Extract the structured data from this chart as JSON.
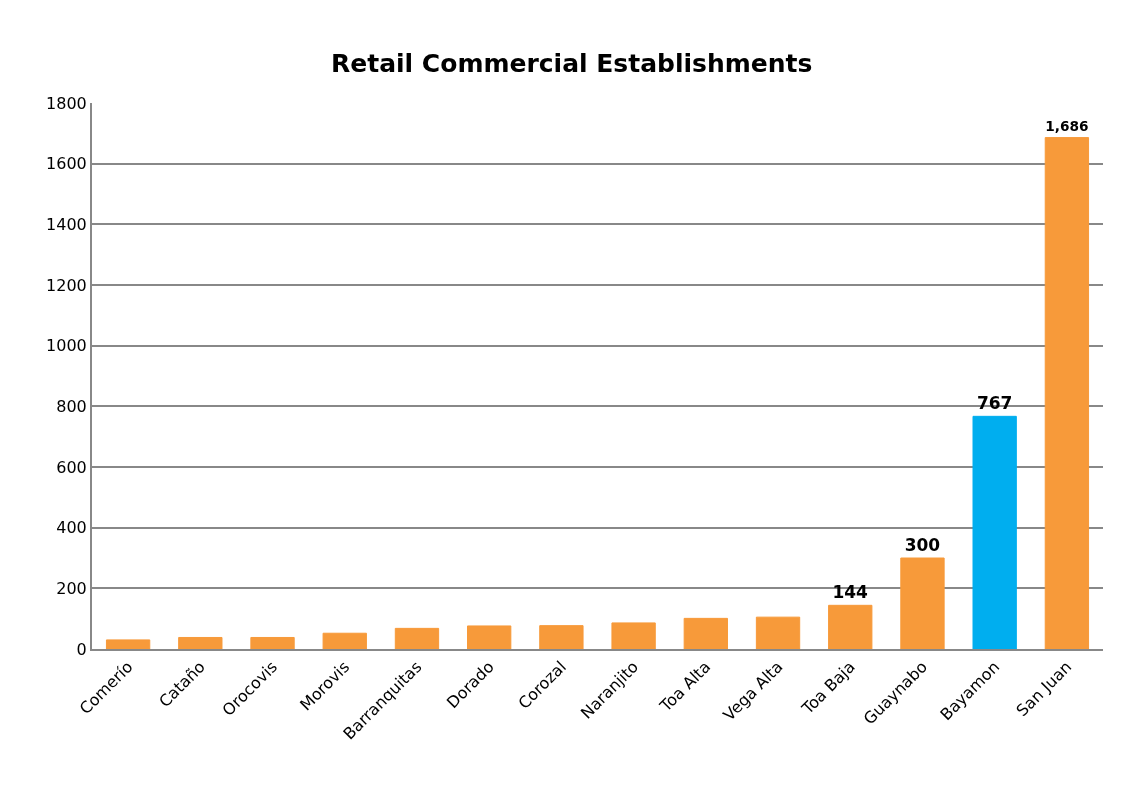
{
  "chart_data": {
    "type": "bar",
    "title": "Retail Commercial Establishments",
    "categories": [
      "Comerío",
      "Cataño",
      "Orocovis",
      "Morovis",
      "Barranquitas",
      "Dorado",
      "Corozal",
      "Naranjito",
      "Toa Alta",
      "Vega Alta",
      "Toa Baja",
      "Guaynabo",
      "Bayamon",
      "San Juan"
    ],
    "values": [
      30,
      38,
      38,
      52,
      68,
      76,
      77,
      86,
      101,
      105,
      144,
      300,
      767,
      1686
    ],
    "value_labels": [
      null,
      null,
      null,
      null,
      null,
      null,
      null,
      null,
      null,
      null,
      "144",
      "300",
      "767",
      "1,686"
    ],
    "colors": [
      "#f79a3a",
      "#f79a3a",
      "#f79a3a",
      "#f79a3a",
      "#f79a3a",
      "#f79a3a",
      "#f79a3a",
      "#f79a3a",
      "#f79a3a",
      "#f79a3a",
      "#f79a3a",
      "#f79a3a",
      "#00aeef",
      "#f79a3a"
    ],
    "ylim": [
      0,
      1800
    ],
    "yticks": [
      0,
      200,
      400,
      600,
      800,
      1000,
      1200,
      1400,
      1600,
      1800
    ],
    "grid": "y",
    "legend": false
  }
}
